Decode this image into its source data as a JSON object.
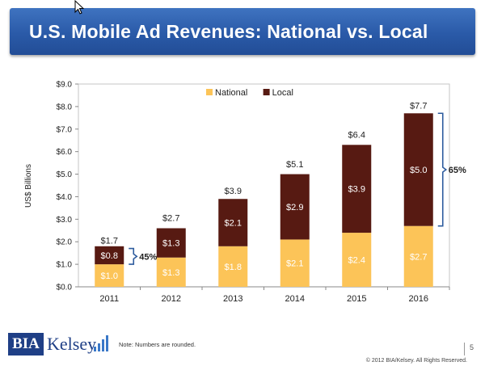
{
  "title": "U.S. Mobile Ad Revenues: National vs. Local",
  "chart_data": {
    "type": "bar",
    "stacked": true,
    "categories": [
      "2011",
      "2012",
      "2013",
      "2014",
      "2015",
      "2016"
    ],
    "series": [
      {
        "name": "National",
        "color": "#FCC458",
        "values": [
          1.0,
          1.3,
          1.8,
          2.1,
          2.4,
          2.7
        ],
        "labels": [
          "$1.0",
          "$1.3",
          "$1.8",
          "$2.1",
          "$2.4",
          "$2.7"
        ]
      },
      {
        "name": "Local",
        "color": "#571A12",
        "values": [
          0.8,
          1.3,
          2.1,
          2.9,
          3.9,
          5.0
        ],
        "labels": [
          "$0.8",
          "$1.3",
          "$2.1",
          "$2.9",
          "$3.9",
          "$5.0"
        ]
      }
    ],
    "totals": [
      1.7,
      2.7,
      3.9,
      5.1,
      6.4,
      7.7
    ],
    "total_labels": [
      "$1.7",
      "$2.7",
      "$3.9",
      "$5.1",
      "$6.4",
      "$7.7"
    ],
    "ylabel": "US$ Billions",
    "ylim": [
      0,
      9
    ],
    "ytick_values": [
      0,
      1,
      2,
      3,
      4,
      5,
      6,
      7,
      8,
      9
    ],
    "ytick_labels": [
      "$0.0",
      "$1.0",
      "$2.0",
      "$3.0",
      "$4.0",
      "$5.0",
      "$6.0",
      "$7.0",
      "$8.0",
      "$9.0"
    ],
    "legend_position": "top-center",
    "annotations": [
      {
        "text": "45%",
        "category_index": 0
      },
      {
        "text": "65%",
        "category_index": 5
      }
    ]
  },
  "footer": {
    "logo_left": "BIA",
    "logo_right": "Kelsey",
    "note": "Note:  Numbers   are rounded.",
    "copyright": "© 2012 BIA/Kelsey.  All Rights Reserved.",
    "page_number": "5"
  },
  "colors": {
    "title_bar": "#2A5AA8",
    "logo_blue": "#1F3F86",
    "bracket": "#2E5C9E"
  }
}
